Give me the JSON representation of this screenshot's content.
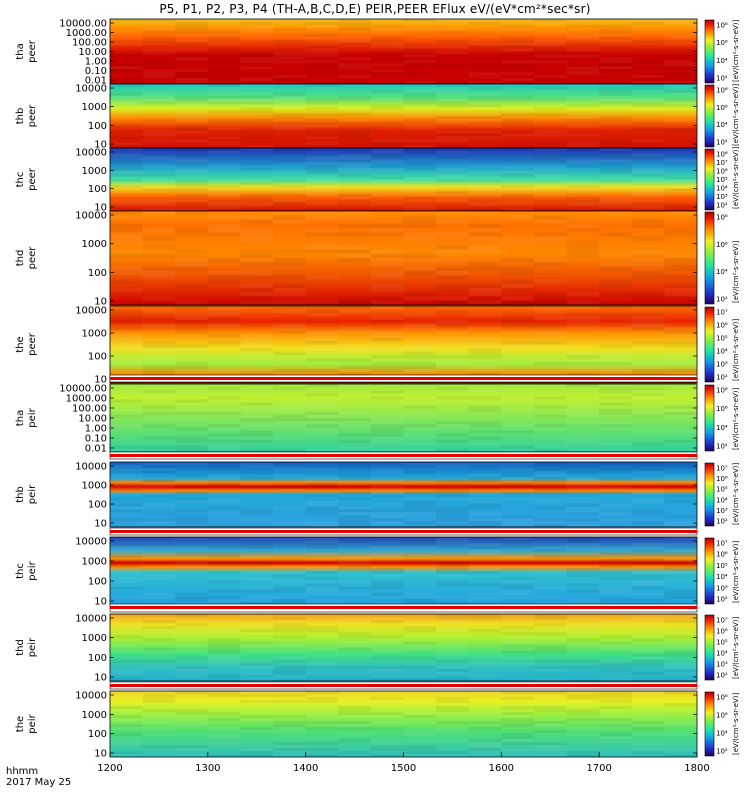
{
  "title": "P5, P1, P2, P3, P4 (TH-A,B,C,D,E) PEIR,PEER EFlux eV/(eV*cm²*sec*sr)",
  "footer": {
    "time_label": "hhmm",
    "date_label": "2017 May 25"
  },
  "colorbar_unit_text": "[eV/(cm²-s-sr-eV)]",
  "chart_data": {
    "type": "heatmap",
    "x_ticks": [
      "1200",
      "1300",
      "1400",
      "1500",
      "1600",
      "1700",
      "1800"
    ],
    "x_range": [
      1200,
      1800
    ],
    "panels": [
      {
        "name": "tha peer",
        "probe": "tha",
        "species": "peer",
        "yticks": [
          "10000.00",
          "1000.00",
          "100.00",
          "10.00",
          "1.00",
          "0.10",
          "0.01"
        ],
        "cbar_ticks": [
          "10⁸",
          "10⁶",
          "10⁴",
          "10²"
        ]
      },
      {
        "name": "thb peer",
        "probe": "thb",
        "species": "peer",
        "yticks": [
          "10000",
          "1000",
          "100",
          "10"
        ],
        "cbar_ticks": [
          "10⁸",
          "10⁶",
          "10⁴",
          "10²"
        ]
      },
      {
        "name": "thc peer",
        "probe": "thc",
        "species": "peer",
        "yticks": [
          "10000",
          "1000",
          "100",
          "10"
        ],
        "cbar_ticks": [
          "10⁸",
          "10⁷",
          "10⁶",
          "10⁵",
          "10⁴",
          "10³",
          "10²"
        ]
      },
      {
        "name": "thd peer",
        "probe": "thd",
        "species": "peer",
        "yticks": [
          "10000",
          "1000",
          "100",
          "10"
        ],
        "cbar_ticks": [
          "10⁸",
          "10⁶",
          "10⁴",
          "10²"
        ]
      },
      {
        "name": "the peer",
        "probe": "the",
        "species": "peer",
        "yticks": [
          "10000",
          "1000",
          "100",
          "10"
        ],
        "cbar_ticks": [
          "10⁷",
          "10⁶",
          "10⁵",
          "10⁴",
          "10³",
          "10²"
        ]
      },
      {
        "name": "tha peir",
        "probe": "tha",
        "species": "peir",
        "yticks": [
          "10000.00",
          "1000.00",
          "100.00",
          "10.00",
          "1.00",
          "0.10",
          "0.01"
        ],
        "cbar_ticks": [
          "10⁸",
          "10⁶",
          "10⁴",
          "10²"
        ]
      },
      {
        "name": "thb peir",
        "probe": "thb",
        "species": "peir",
        "yticks": [
          "10000",
          "1000",
          "100",
          "10"
        ],
        "cbar_ticks": [
          "10⁷",
          "10⁶",
          "10⁵",
          "10⁴",
          "10³",
          "10²"
        ]
      },
      {
        "name": "thc peir",
        "probe": "thc",
        "species": "peir",
        "yticks": [
          "10000",
          "1000",
          "100",
          "10"
        ],
        "cbar_ticks": [
          "10⁷",
          "10⁶",
          "10⁵",
          "10⁴",
          "10³",
          "10²"
        ]
      },
      {
        "name": "thd peir",
        "probe": "thd",
        "species": "peir",
        "yticks": [
          "10000",
          "1000",
          "100",
          "10"
        ],
        "cbar_ticks": [
          "10⁷",
          "10⁶",
          "10⁵",
          "10⁴",
          "10³",
          "10²"
        ]
      },
      {
        "name": "the peir",
        "probe": "the",
        "species": "peir",
        "yticks": [
          "10000",
          "1000",
          "100",
          "10"
        ],
        "cbar_ticks": [
          "10⁸",
          "10⁶",
          "10⁴",
          "10²"
        ]
      }
    ],
    "colormap": [
      "#200060",
      "#2030d0",
      "#10a0e8",
      "#20e8a0",
      "#80f040",
      "#f0f020",
      "#ff9000",
      "#f02000",
      "#b00000"
    ]
  }
}
